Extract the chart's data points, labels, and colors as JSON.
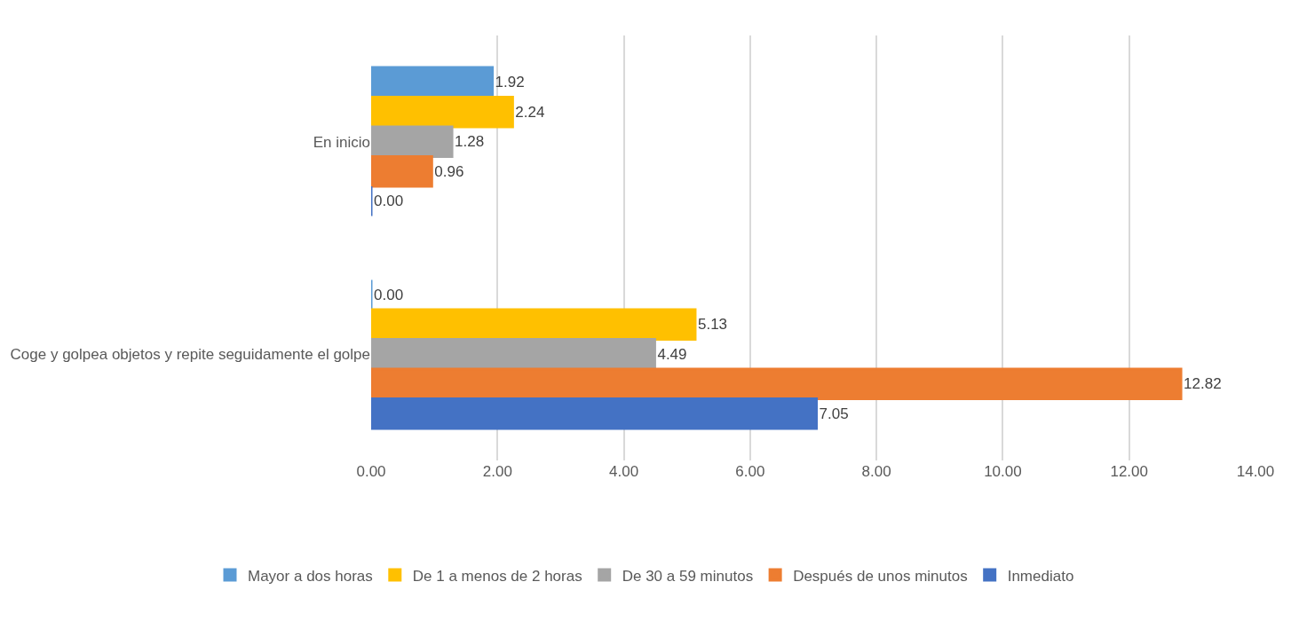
{
  "chart_data": {
    "type": "bar",
    "orientation": "horizontal",
    "categories": [
      "En inicio",
      "Coge y golpea objetos y repite seguidamente el golpe"
    ],
    "series": [
      {
        "name": "Mayor a dos horas",
        "color": "#5b9bd5",
        "values": [
          1.92,
          0.0
        ],
        "value_labels": [
          "1.92",
          "0.00"
        ]
      },
      {
        "name": "De 1 a menos de 2 horas",
        "color": "#ffc000",
        "values": [
          2.24,
          5.13
        ],
        "value_labels": [
          "2.24",
          "5.13"
        ]
      },
      {
        "name": "De 30 a 59 minutos",
        "color": "#a5a5a5",
        "values": [
          1.28,
          4.49
        ],
        "value_labels": [
          "1.28",
          "4.49"
        ]
      },
      {
        "name": "Después de unos minutos",
        "color": "#ed7d31",
        "values": [
          0.96,
          12.82
        ],
        "value_labels": [
          "0.96",
          "12.82"
        ]
      },
      {
        "name": "Inmediato",
        "color": "#4472c4",
        "values": [
          0.0,
          7.05
        ],
        "value_labels": [
          "0.00",
          "7.05"
        ]
      }
    ],
    "xlim": [
      0,
      14
    ],
    "xticks": [
      {
        "value": 0,
        "label": "0.00"
      },
      {
        "value": 2,
        "label": "2.00"
      },
      {
        "value": 4,
        "label": "4.00"
      },
      {
        "value": 6,
        "label": "6.00"
      },
      {
        "value": 8,
        "label": "8.00"
      },
      {
        "value": 10,
        "label": "10.00"
      },
      {
        "value": 12,
        "label": "12.00"
      },
      {
        "value": 14,
        "label": "14.00"
      }
    ],
    "grid": "x",
    "legend": "bottom"
  }
}
